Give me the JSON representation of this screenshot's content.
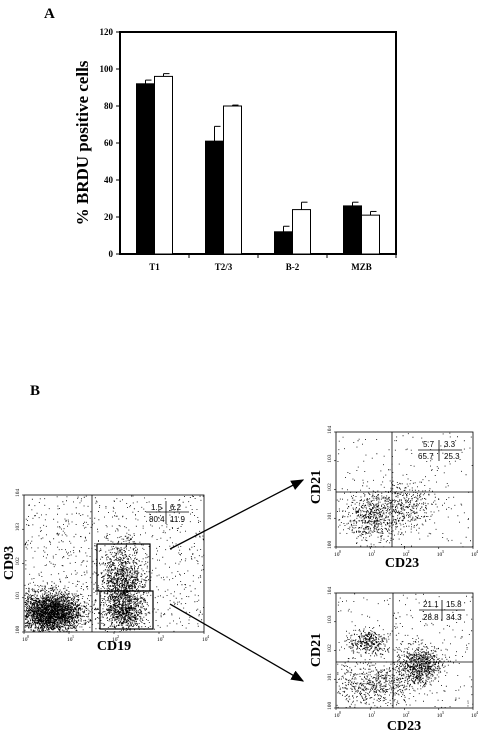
{
  "panels": {
    "a_label": "A",
    "b_label": "B"
  },
  "chart_data": [
    {
      "type": "bar",
      "panel": "A",
      "ylabel": "% BRDU positive cells",
      "xlabel": "",
      "ylim": [
        0,
        120
      ],
      "yticks": [
        "0",
        "20",
        "40",
        "60",
        "80",
        "100",
        "120"
      ],
      "categories": [
        "T1",
        "T2/3",
        "B-2",
        "MZB"
      ],
      "series": [
        {
          "fill": "#000000",
          "values": [
            92,
            61,
            12,
            26
          ],
          "errors": [
            2,
            8,
            3,
            2
          ]
        },
        {
          "fill": "#ffffff",
          "values": [
            96,
            80,
            24,
            21
          ],
          "errors": [
            1.5,
            0.5,
            4,
            2
          ]
        }
      ]
    },
    {
      "type": "scatter",
      "panel": "B",
      "xlabel": "CD19",
      "ylabel": "CD93",
      "ticks": [
        "10",
        "0",
        "10",
        "1",
        "10",
        "2",
        "10",
        "3",
        "10",
        "4"
      ],
      "quadrants": {
        "ul": "1.5",
        "ur": "6.2",
        "ll": "80.4",
        "lr": "11.9"
      },
      "gates": [
        "CD93 high CD19+ gate",
        "CD93 low CD19+ gate"
      ]
    },
    {
      "type": "scatter",
      "panel": "B",
      "xlabel": "CD23",
      "ylabel": "CD21",
      "ticks": [
        "10",
        "0",
        "10",
        "1",
        "10",
        "2",
        "10",
        "3",
        "10",
        "4"
      ],
      "quadrants": {
        "ul": "5.7",
        "ur": "3.3",
        "ll": "65.7",
        "lr": "25.3"
      }
    },
    {
      "type": "scatter",
      "panel": "B",
      "xlabel": "CD23",
      "ylabel": "CD21",
      "ticks": [
        "10",
        "0",
        "10",
        "1",
        "10",
        "2",
        "10",
        "3",
        "10",
        "4"
      ],
      "quadrants": {
        "ul": "21.1",
        "ur": "15.8",
        "ll": "28.8",
        "lr": "34.3"
      }
    }
  ]
}
